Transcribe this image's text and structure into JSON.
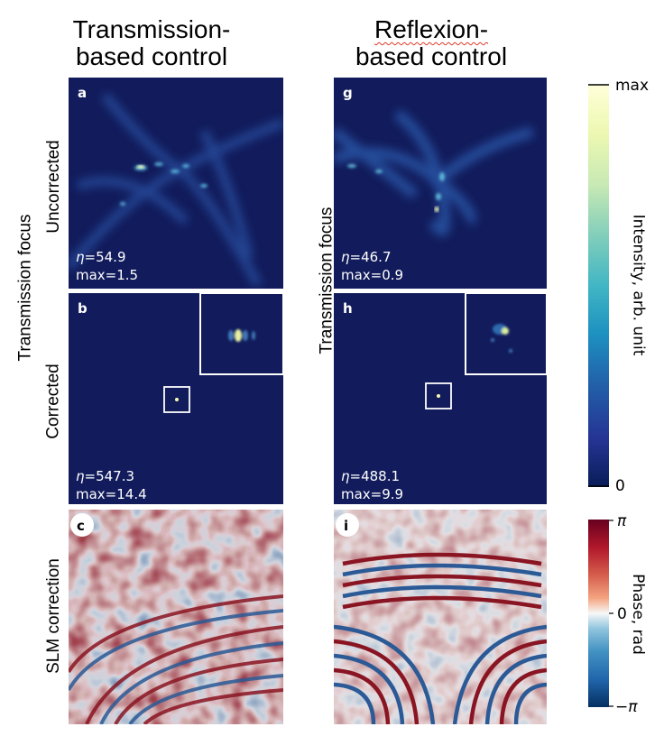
{
  "columns": [
    {
      "title_line1": "Transmission-",
      "title_line2": "based control"
    },
    {
      "title_line1": "Reflexion-",
      "title_line2": "based control"
    }
  ],
  "row_labels": {
    "group_left": "Transmission focus",
    "group_right": "Transmission focus",
    "uncorrected": "Uncorrected",
    "corrected": "Corrected",
    "slm": "SLM correction"
  },
  "panels": {
    "a": {
      "label": "a",
      "eta": "54.9",
      "max": "max=1.5"
    },
    "b": {
      "label": "b",
      "eta": "547.3",
      "max": "max=14.4"
    },
    "c": {
      "label": "c"
    },
    "g": {
      "label": "g",
      "eta": "46.7",
      "max": "max=0.9"
    },
    "h": {
      "label": "h",
      "eta": "488.1",
      "max": "max=9.9"
    },
    "i": {
      "label": "i"
    }
  },
  "eta_symbol": "η=",
  "intensity_colorbar": {
    "top": "max",
    "bottom": "0",
    "label": "Intensity, arb. unit"
  },
  "phase_colorbar": {
    "top": "π",
    "middle": "0",
    "bottom": "−π",
    "label": "Phase, rad"
  },
  "colors": {
    "intensity_background": "#121c5c",
    "phase_red": "#8a1522",
    "phase_blue": "#2b5a96",
    "phase_white": "#f5f3f2"
  }
}
